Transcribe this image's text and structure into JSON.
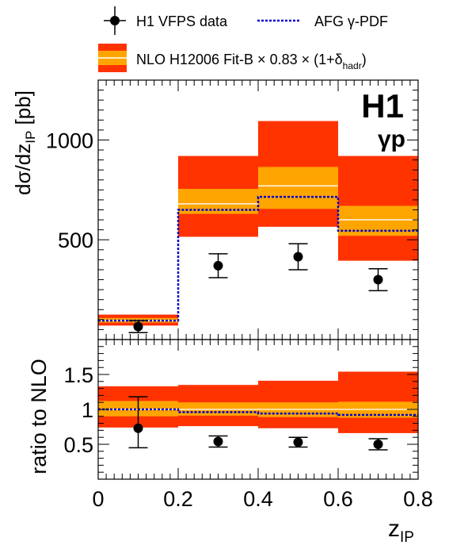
{
  "legend": {
    "data_label": "H1 VFPS data",
    "afg_label": "AFG γ-PDF",
    "nlo_label_main": "NLO H12006 Fit-B × 0.83 × (1+δ",
    "nlo_label_sub": "hadr",
    "nlo_label_end": ")"
  },
  "experiment_label": "H1",
  "process_label": "γp",
  "colors": {
    "scale_band": "#ff3300",
    "pdf_band": "#ffa500",
    "central_line": "#ffffff",
    "afg_line": "#0000cc",
    "data": "#000000"
  },
  "chart_data": [
    {
      "type": "bar",
      "panel": "cross-section",
      "xlabel_main": "z",
      "xlabel_sub": "IP",
      "ylabel": "dσ/dz",
      "ylabel_sub": "IP",
      "ylabel_unit": "[pb]",
      "xlim": [
        0,
        0.8
      ],
      "ylim": [
        0,
        1300
      ],
      "yticks": [
        500,
        1000
      ],
      "bins": [
        [
          0.0,
          0.2
        ],
        [
          0.2,
          0.4
        ],
        [
          0.4,
          0.6
        ],
        [
          0.6,
          0.8
        ]
      ],
      "nlo_central": [
        95,
        680,
        770,
        600
      ],
      "nlo_pdf_band": [
        [
          85,
          108
        ],
        [
          630,
          755
        ],
        [
          655,
          865
        ],
        [
          520,
          670
        ]
      ],
      "nlo_scale_band": [
        [
          70,
          125
        ],
        [
          515,
          920
        ],
        [
          565,
          1095
        ],
        [
          395,
          920
        ]
      ],
      "afg_pdf": [
        95,
        650,
        715,
        545
      ],
      "data": {
        "x": [
          0.1,
          0.3,
          0.5,
          0.7
        ],
        "y": [
          65,
          370,
          415,
          300
        ],
        "err_lo": [
          30,
          60,
          65,
          55
        ],
        "err_hi": [
          30,
          60,
          65,
          55
        ]
      }
    },
    {
      "type": "bar",
      "panel": "ratio",
      "ylabel": "ratio to NLO",
      "xlim": [
        0,
        0.8
      ],
      "ylim": [
        0,
        2.0
      ],
      "yticks": [
        0.5,
        1,
        1.5
      ],
      "xticks": [
        0,
        0.2,
        0.4,
        0.6,
        0.8
      ],
      "bins": [
        [
          0.0,
          0.2
        ],
        [
          0.2,
          0.4
        ],
        [
          0.4,
          0.6
        ],
        [
          0.6,
          0.8
        ]
      ],
      "nlo_central": [
        1.0,
        1.0,
        1.0,
        1.0
      ],
      "nlo_pdf_band": [
        [
          0.9,
          1.12
        ],
        [
          0.91,
          1.1
        ],
        [
          0.89,
          1.1
        ],
        [
          0.88,
          1.11
        ]
      ],
      "nlo_scale_band": [
        [
          0.74,
          1.33
        ],
        [
          0.76,
          1.35
        ],
        [
          0.73,
          1.41
        ],
        [
          0.66,
          1.54
        ]
      ],
      "afg_pdf": [
        1.0,
        0.96,
        0.94,
        0.92
      ],
      "data": {
        "x": [
          0.1,
          0.3,
          0.5,
          0.7
        ],
        "y": [
          0.73,
          0.54,
          0.53,
          0.5
        ],
        "err_lo": [
          0.28,
          0.08,
          0.07,
          0.08
        ],
        "err_hi": [
          0.45,
          0.08,
          0.07,
          0.08
        ]
      }
    }
  ]
}
